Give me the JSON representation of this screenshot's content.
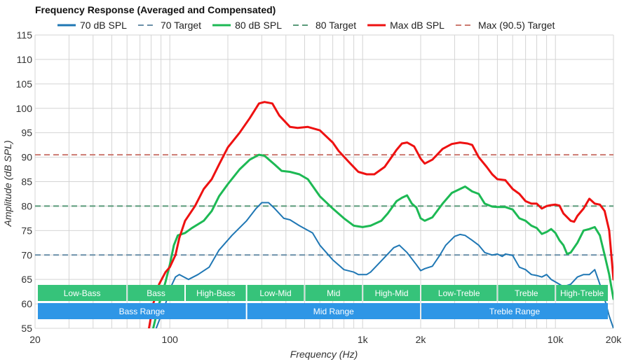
{
  "chart_data": {
    "type": "line",
    "title": "Frequency Response (Averaged and Compensated)",
    "xlabel": "Frequency (Hz)",
    "ylabel": "Amplitude (dB SPL)",
    "xscale": "log",
    "xlim": [
      20,
      20000
    ],
    "ylim": [
      55,
      115
    ],
    "x_ticks": [
      {
        "value": 20,
        "label": "20"
      },
      {
        "value": 100,
        "label": "100"
      },
      {
        "value": 1000,
        "label": "1k"
      },
      {
        "value": 2000,
        "label": "2k"
      },
      {
        "value": 10000,
        "label": "10k"
      },
      {
        "value": 20000,
        "label": "20k"
      }
    ],
    "y_ticks": [
      55,
      60,
      65,
      70,
      75,
      80,
      85,
      90,
      95,
      100,
      105,
      110,
      115
    ],
    "grid": true,
    "legend": [
      {
        "label": "70 dB SPL",
        "color": "#1f77b4",
        "style": "solid"
      },
      {
        "label": "70 Target",
        "color": "#6a8fa8",
        "style": "dashed"
      },
      {
        "label": "80 dB SPL",
        "color": "#1db954",
        "style": "solid"
      },
      {
        "label": "80 Target",
        "color": "#5a9a7a",
        "style": "dashed"
      },
      {
        "label": "Max dB SPL",
        "color": "#ee1111",
        "style": "solid"
      },
      {
        "label": "Max (90.5) Target",
        "color": "#cc7a70",
        "style": "dashed"
      }
    ],
    "targets": [
      {
        "name": "70 Target",
        "value": 70,
        "color": "#6a8fa8"
      },
      {
        "name": "80 Target",
        "value": 80,
        "color": "#5a9a7a"
      },
      {
        "name": "Max (90.5) Target",
        "value": 90.5,
        "color": "#cc7a70"
      }
    ],
    "series": [
      {
        "name": "70 dB SPL",
        "color": "#1f77b4",
        "points": [
          [
            85,
            55
          ],
          [
            95,
            60
          ],
          [
            100,
            63
          ],
          [
            107,
            65.5
          ],
          [
            112,
            66
          ],
          [
            125,
            65
          ],
          [
            140,
            66
          ],
          [
            160,
            67.5
          ],
          [
            180,
            71
          ],
          [
            210,
            74
          ],
          [
            250,
            77
          ],
          [
            280,
            79.5
          ],
          [
            300,
            80.7
          ],
          [
            325,
            80.7
          ],
          [
            350,
            79.5
          ],
          [
            390,
            77.5
          ],
          [
            420,
            77.2
          ],
          [
            470,
            76
          ],
          [
            550,
            74.5
          ],
          [
            600,
            72
          ],
          [
            700,
            69
          ],
          [
            800,
            67
          ],
          [
            900,
            66.5
          ],
          [
            950,
            66
          ],
          [
            1050,
            66
          ],
          [
            1100,
            66.5
          ],
          [
            1300,
            69.5
          ],
          [
            1450,
            71.5
          ],
          [
            1550,
            72
          ],
          [
            1700,
            70.5
          ],
          [
            1900,
            68
          ],
          [
            2000,
            66.8
          ],
          [
            2100,
            67.2
          ],
          [
            2300,
            67.7
          ],
          [
            2500,
            69.8
          ],
          [
            2700,
            72
          ],
          [
            3000,
            73.8
          ],
          [
            3200,
            74.2
          ],
          [
            3400,
            74
          ],
          [
            3700,
            73
          ],
          [
            4000,
            72
          ],
          [
            4300,
            70.5
          ],
          [
            4700,
            70
          ],
          [
            5000,
            70.2
          ],
          [
            5300,
            69.7
          ],
          [
            5500,
            70.2
          ],
          [
            6000,
            69.9
          ],
          [
            6500,
            67.5
          ],
          [
            7000,
            67
          ],
          [
            7500,
            66
          ],
          [
            8000,
            65.8
          ],
          [
            8500,
            65.5
          ],
          [
            9000,
            66
          ],
          [
            9500,
            65
          ],
          [
            10000,
            64.5
          ],
          [
            10500,
            64
          ],
          [
            11000,
            63.5
          ],
          [
            12000,
            64
          ],
          [
            13000,
            65.5
          ],
          [
            14000,
            66
          ],
          [
            15000,
            66
          ],
          [
            16000,
            67
          ],
          [
            17000,
            64
          ],
          [
            18000,
            61
          ],
          [
            19000,
            57.5
          ],
          [
            20000,
            55
          ]
        ]
      },
      {
        "name": "80 dB SPL",
        "color": "#1db954",
        "points": [
          [
            82,
            55
          ],
          [
            88,
            60
          ],
          [
            95,
            64.5
          ],
          [
            100,
            68
          ],
          [
            105,
            72
          ],
          [
            110,
            74
          ],
          [
            120,
            74.5
          ],
          [
            130,
            75.5
          ],
          [
            150,
            77
          ],
          [
            165,
            79
          ],
          [
            180,
            82
          ],
          [
            200,
            84.5
          ],
          [
            230,
            87.5
          ],
          [
            260,
            89.5
          ],
          [
            290,
            90.5
          ],
          [
            310,
            90.3
          ],
          [
            350,
            88.5
          ],
          [
            380,
            87.2
          ],
          [
            420,
            87
          ],
          [
            470,
            86.5
          ],
          [
            520,
            85.5
          ],
          [
            600,
            82
          ],
          [
            700,
            79.5
          ],
          [
            800,
            77.5
          ],
          [
            900,
            76
          ],
          [
            1000,
            75.7
          ],
          [
            1100,
            76
          ],
          [
            1250,
            77
          ],
          [
            1350,
            78.5
          ],
          [
            1500,
            81
          ],
          [
            1600,
            81.7
          ],
          [
            1700,
            82.2
          ],
          [
            1800,
            80.5
          ],
          [
            1900,
            79.7
          ],
          [
            2000,
            77.5
          ],
          [
            2100,
            77
          ],
          [
            2300,
            77.7
          ],
          [
            2600,
            80.5
          ],
          [
            2900,
            82.7
          ],
          [
            3200,
            83.5
          ],
          [
            3400,
            84
          ],
          [
            3700,
            83
          ],
          [
            4000,
            82.5
          ],
          [
            4300,
            80.5
          ],
          [
            4700,
            79.9
          ],
          [
            5000,
            79.8
          ],
          [
            5500,
            79.8
          ],
          [
            6000,
            79.3
          ],
          [
            6500,
            77.5
          ],
          [
            7000,
            77
          ],
          [
            7500,
            76
          ],
          [
            8000,
            75.5
          ],
          [
            8500,
            74.3
          ],
          [
            9000,
            74.7
          ],
          [
            9500,
            75.3
          ],
          [
            10000,
            74.5
          ],
          [
            10500,
            73
          ],
          [
            11000,
            72
          ],
          [
            11500,
            70.2
          ],
          [
            12000,
            70.5
          ],
          [
            13000,
            72.5
          ],
          [
            14000,
            75
          ],
          [
            15000,
            75.3
          ],
          [
            16000,
            75.7
          ],
          [
            17000,
            74
          ],
          [
            18000,
            70
          ],
          [
            19000,
            66
          ],
          [
            20000,
            61
          ]
        ]
      },
      {
        "name": "Max dB SPL",
        "color": "#ee1111",
        "points": [
          [
            78,
            55
          ],
          [
            82,
            60
          ],
          [
            88,
            64
          ],
          [
            95,
            66.5
          ],
          [
            100,
            67.5
          ],
          [
            107,
            70
          ],
          [
            112,
            73.5
          ],
          [
            120,
            77
          ],
          [
            135,
            80
          ],
          [
            150,
            83.5
          ],
          [
            165,
            85.5
          ],
          [
            180,
            88.5
          ],
          [
            200,
            92
          ],
          [
            230,
            95
          ],
          [
            260,
            98
          ],
          [
            290,
            101
          ],
          [
            310,
            101.3
          ],
          [
            340,
            101
          ],
          [
            370,
            98.5
          ],
          [
            420,
            96.2
          ],
          [
            460,
            96
          ],
          [
            520,
            96.2
          ],
          [
            600,
            95.5
          ],
          [
            700,
            93
          ],
          [
            750,
            91.3
          ],
          [
            850,
            89
          ],
          [
            950,
            87
          ],
          [
            1050,
            86.5
          ],
          [
            1150,
            86.5
          ],
          [
            1300,
            88
          ],
          [
            1400,
            89.8
          ],
          [
            1500,
            91.5
          ],
          [
            1600,
            92.8
          ],
          [
            1700,
            93
          ],
          [
            1850,
            92.2
          ],
          [
            2000,
            89.7
          ],
          [
            2100,
            88.7
          ],
          [
            2300,
            89.5
          ],
          [
            2600,
            91.7
          ],
          [
            2900,
            92.7
          ],
          [
            3200,
            93
          ],
          [
            3500,
            92.8
          ],
          [
            3700,
            92.5
          ],
          [
            4000,
            90
          ],
          [
            4400,
            88
          ],
          [
            4700,
            86.5
          ],
          [
            5000,
            85.5
          ],
          [
            5500,
            85.3
          ],
          [
            6000,
            83.5
          ],
          [
            6500,
            82.5
          ],
          [
            7000,
            81
          ],
          [
            7500,
            80.5
          ],
          [
            8000,
            80.5
          ],
          [
            8500,
            79.5
          ],
          [
            9000,
            80
          ],
          [
            9500,
            80.2
          ],
          [
            10000,
            80.3
          ],
          [
            10500,
            80.1
          ],
          [
            11000,
            78.5
          ],
          [
            12000,
            77
          ],
          [
            12500,
            76.8
          ],
          [
            13000,
            78
          ],
          [
            14000,
            79.5
          ],
          [
            15000,
            81.5
          ],
          [
            16000,
            80.5
          ],
          [
            17000,
            80.3
          ],
          [
            18000,
            79
          ],
          [
            19000,
            75
          ],
          [
            20000,
            65
          ]
        ]
      }
    ],
    "bands": [
      {
        "row": "upper",
        "label": "Low-Bass",
        "from": 20,
        "to": 60,
        "color": "#36c37a"
      },
      {
        "row": "upper",
        "label": "Bass",
        "from": 60,
        "to": 120,
        "color": "#36c37a"
      },
      {
        "row": "upper",
        "label": "High-Bass",
        "from": 120,
        "to": 250,
        "color": "#36c37a"
      },
      {
        "row": "upper",
        "label": "Low-Mid",
        "from": 250,
        "to": 500,
        "color": "#36c37a"
      },
      {
        "row": "upper",
        "label": "Mid",
        "from": 500,
        "to": 1000,
        "color": "#36c37a"
      },
      {
        "row": "upper",
        "label": "High-Mid",
        "from": 1000,
        "to": 2000,
        "color": "#36c37a"
      },
      {
        "row": "upper",
        "label": "Low-Treble",
        "from": 2000,
        "to": 5000,
        "color": "#36c37a"
      },
      {
        "row": "upper",
        "label": "Treble",
        "from": 5000,
        "to": 10000,
        "color": "#36c37a"
      },
      {
        "row": "upper",
        "label": "High-Treble",
        "from": 10000,
        "to": 20000,
        "color": "#36c37a"
      },
      {
        "row": "lower",
        "label": "Bass Range",
        "from": 20,
        "to": 250,
        "color": "#2e96e6"
      },
      {
        "row": "lower",
        "label": "Mid Range",
        "from": 250,
        "to": 2000,
        "color": "#2e96e6"
      },
      {
        "row": "lower",
        "label": "Treble Range",
        "from": 2000,
        "to": 20000,
        "color": "#2e96e6"
      }
    ]
  }
}
